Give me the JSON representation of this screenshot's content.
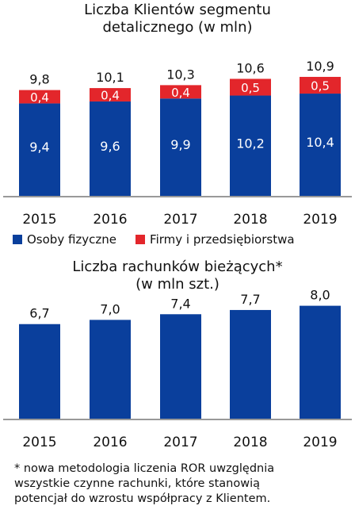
{
  "colors": {
    "primary": "#0a3f9c",
    "secondary": "#e3262b",
    "axis": "#333333"
  },
  "chart_data": [
    {
      "type": "bar",
      "stacked": true,
      "title_lines": [
        "Liczba Klientów segmentu",
        "detalicznego  (w mln)"
      ],
      "categories": [
        "2015",
        "2016",
        "2017",
        "2018",
        "2019"
      ],
      "series": [
        {
          "name": "Osoby fizyczne",
          "values": [
            9.4,
            9.6,
            9.9,
            10.2,
            10.4
          ],
          "labels": [
            "9,4",
            "9,6",
            "9,9",
            "10,2",
            "10,4"
          ]
        },
        {
          "name": "Firmy i przedsiębiorstwa",
          "values": [
            0.4,
            0.4,
            0.4,
            0.5,
            0.5
          ],
          "labels": [
            "0,4",
            "0,4",
            "0,4",
            "0,5",
            "0,5"
          ]
        }
      ],
      "totals": [
        "9,8",
        "10,1",
        "10,3",
        "10,6",
        "10,9"
      ],
      "legend_position": "bottom"
    },
    {
      "type": "bar",
      "title_lines": [
        "Liczba rachunków  bieżących*",
        "(w mln szt.)"
      ],
      "categories": [
        "2015",
        "2016",
        "2017",
        "2018",
        "2019"
      ],
      "values": [
        6.7,
        7.0,
        7.4,
        7.7,
        8.0
      ],
      "labels": [
        "6,7",
        "7,0",
        "7,4",
        "7,7",
        "8,0"
      ]
    }
  ],
  "footnote_lines": [
    "* nowa metodologia  liczenia ROR uwzględnia",
    "  wszystkie czynne rachunki, które stanowią",
    "  potencjał do wzrostu współpracy z Klientem."
  ]
}
